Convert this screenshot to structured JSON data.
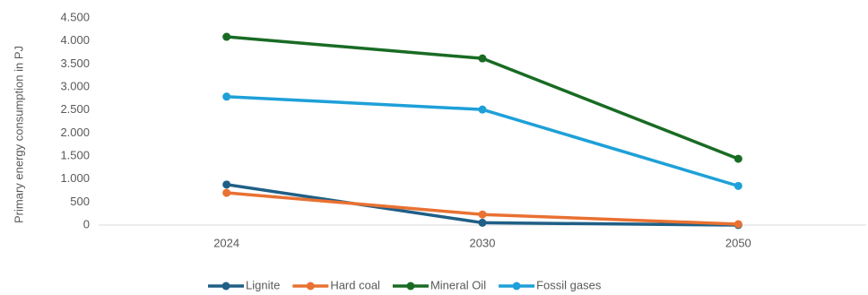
{
  "chart_data": {
    "type": "line",
    "y_label": "Primary energy consumption in PJ",
    "categories": [
      "2024",
      "2030",
      "2050"
    ],
    "series": [
      {
        "name": "Lignite",
        "color": "#1f5f86",
        "values": [
          880,
          50,
          0
        ]
      },
      {
        "name": "Hard coal",
        "color": "#e97132",
        "values": [
          700,
          230,
          20
        ]
      },
      {
        "name": "Mineral Oil",
        "color": "#196b24",
        "values": [
          4090,
          3620,
          1440
        ]
      },
      {
        "name": "Fossil gases",
        "color": "#1ea0d8",
        "values": [
          2790,
          2510,
          850
        ]
      }
    ],
    "ylim": [
      0,
      4500
    ],
    "yticks": [
      0,
      500,
      {
        "value": 1000,
        "label": "1.000"
      },
      {
        "value": 1500,
        "label": "1.500"
      },
      {
        "value": 2000,
        "label": "2.000"
      },
      {
        "value": 2500,
        "label": "2.500"
      },
      {
        "value": 3000,
        "label": "3.000"
      },
      {
        "value": 3500,
        "label": "3.500"
      },
      {
        "value": 4000,
        "label": "4.000"
      },
      {
        "value": 4500,
        "label": "4.500"
      }
    ],
    "grid": false,
    "legend": "bottom"
  }
}
